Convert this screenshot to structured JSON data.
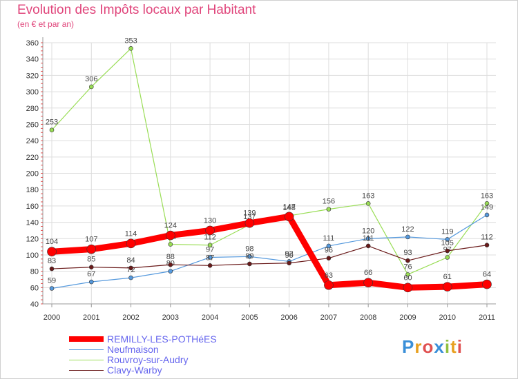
{
  "header": {
    "title": "Evolution des Impôts locaux par Habitant",
    "subtitle": "(en € et par an)"
  },
  "brand": "Proxiti",
  "colors": {
    "title": "#e0457b",
    "grid": "#dddddd",
    "axis": "#999999"
  },
  "chart_data": {
    "type": "line",
    "title": "Evolution des Impôts locaux par Habitant",
    "subtitle": "(en € et par an)",
    "x": [
      "2000",
      "2001",
      "2002",
      "2003",
      "2004",
      "2005",
      "2006",
      "2007",
      "2008",
      "2009",
      "2010",
      "2011"
    ],
    "ylim": [
      40,
      360
    ],
    "yticks": [
      40,
      60,
      80,
      100,
      120,
      140,
      160,
      180,
      200,
      220,
      240,
      260,
      280,
      300,
      320,
      340,
      360
    ],
    "grid": true,
    "legend_position": "bottom-left",
    "series": [
      {
        "name": "Rouvroy-sur-Audry",
        "color": "#99dd55",
        "values": [
          253,
          306,
          353,
          113,
          112,
          137,
          148,
          156,
          163,
          76,
          97,
          163
        ]
      },
      {
        "name": "Neufmaison",
        "color": "#5599dd",
        "values": [
          59,
          67,
          72,
          80,
          97,
          98,
          92,
          111,
          120,
          122,
          119,
          149
        ]
      },
      {
        "name": "Clavy-Warby",
        "color": "#6a1a1a",
        "values": [
          83,
          85,
          84,
          88,
          87,
          89,
          90,
          96,
          111,
          93,
          105,
          112
        ]
      },
      {
        "name": "REMILLY-LES-POTHéES",
        "color": "#ff0000",
        "values": [
          104,
          107,
          114,
          124,
          130,
          139,
          147,
          63,
          66,
          60,
          61,
          64
        ]
      }
    ],
    "legend_order": [
      "REMILLY-LES-POTHéES",
      "Neufmaison",
      "Rouvroy-sur-Audry",
      "Clavy-Warby"
    ]
  }
}
